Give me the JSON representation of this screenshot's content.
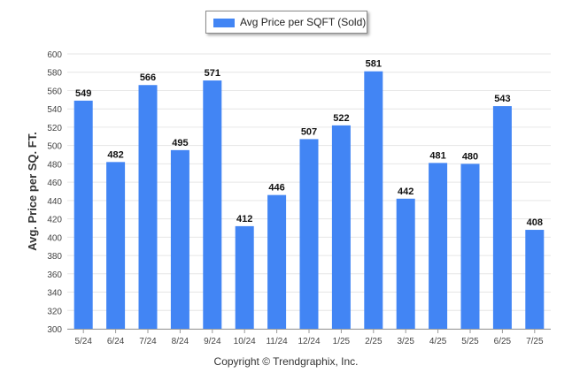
{
  "legend": {
    "label": "Avg Price per SQFT (Sold)",
    "color": "#4285f4"
  },
  "footer": {
    "copyright": "Copyright © Trendgraphix, Inc."
  },
  "chart_data": {
    "type": "bar",
    "title": "",
    "xlabel": "",
    "ylabel": "Avg. Price per SQ. FT.",
    "ylim": [
      300,
      600
    ],
    "yticks": [
      300,
      320,
      340,
      360,
      380,
      400,
      420,
      440,
      460,
      480,
      500,
      520,
      540,
      560,
      580,
      600
    ],
    "grid": true,
    "legend_position": "top-center",
    "categories": [
      "5/24",
      "6/24",
      "7/24",
      "8/24",
      "9/24",
      "10/24",
      "11/24",
      "12/24",
      "1/25",
      "2/25",
      "3/25",
      "4/25",
      "5/25",
      "6/25",
      "7/25"
    ],
    "series": [
      {
        "name": "Avg Price per SQFT (Sold)",
        "values": [
          549,
          482,
          566,
          495,
          571,
          412,
          446,
          507,
          522,
          581,
          442,
          481,
          480,
          543,
          408
        ]
      }
    ],
    "bar_color": "#4285f4",
    "grid_color": "#e6e6e6",
    "axis_color": "#9a9a9a"
  }
}
